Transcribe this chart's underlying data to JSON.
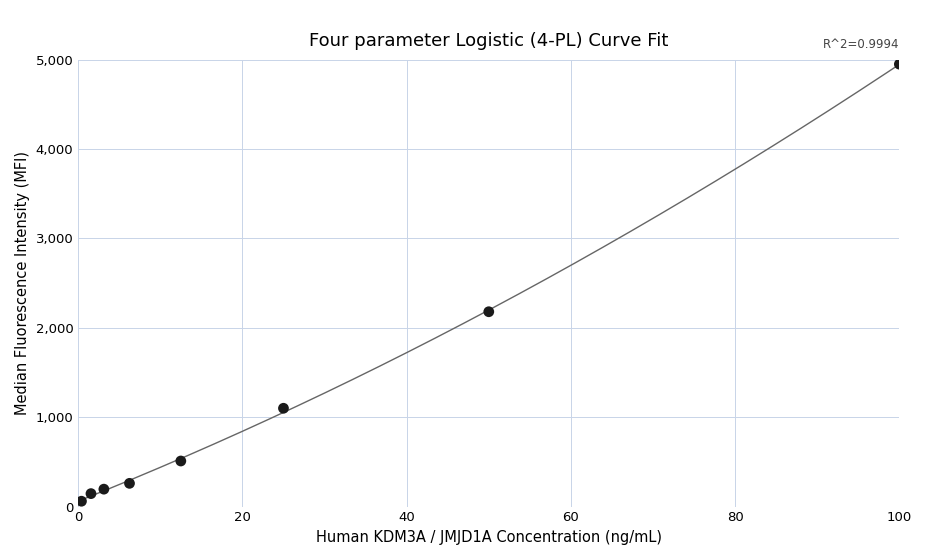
{
  "title": "Four parameter Logistic (4-PL) Curve Fit",
  "xlabel": "Human KDM3A / JMJD1A Concentration (ng/mL)",
  "ylabel": "Median Fluorescence Intensity (MFI)",
  "x_data": [
    0.4,
    1.56,
    3.13,
    6.25,
    12.5,
    25.0,
    50.0,
    100.0
  ],
  "y_data": [
    60,
    145,
    195,
    260,
    510,
    1100,
    2180,
    4950
  ],
  "r_squared": "R^2=0.9994",
  "xlim": [
    0,
    100
  ],
  "ylim": [
    0,
    5000
  ],
  "xticks": [
    0,
    20,
    40,
    60,
    80,
    100
  ],
  "yticks": [
    0,
    1000,
    2000,
    3000,
    4000,
    5000
  ],
  "dot_color": "#1a1a1a",
  "line_color": "#666666",
  "dot_size": 60,
  "background_color": "#ffffff",
  "grid_color": "#c8d4e8",
  "title_fontsize": 13,
  "label_fontsize": 10.5,
  "tick_fontsize": 9.5,
  "annotation_fontsize": 8.5
}
